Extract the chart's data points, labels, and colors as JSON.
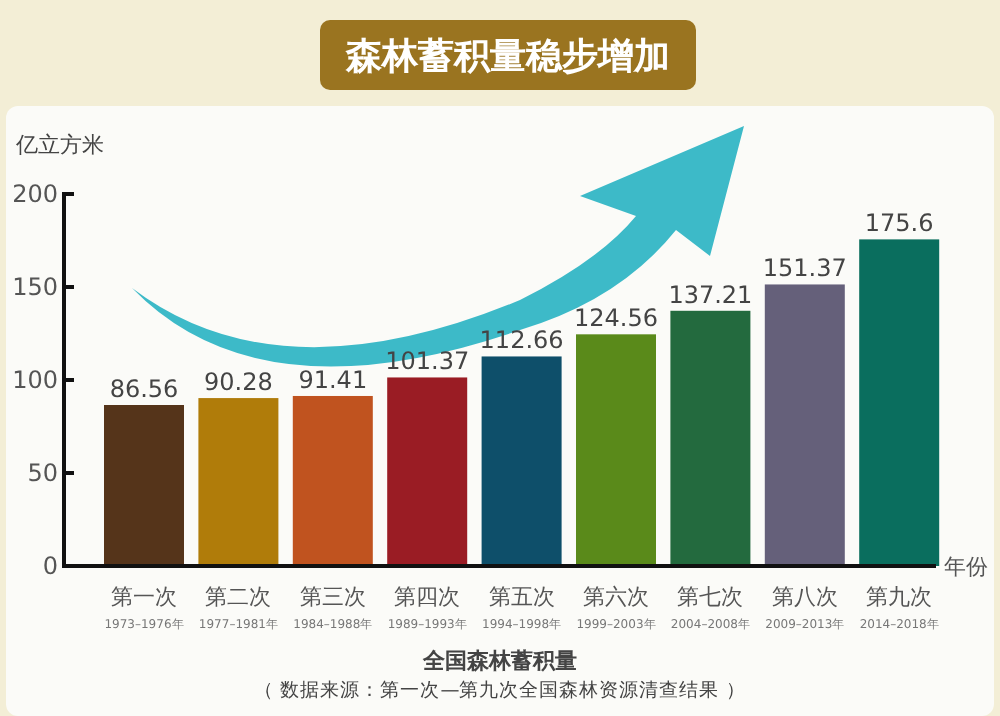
{
  "chart_data": {
    "type": "bar",
    "title": "森林蓄积量稳步增加",
    "xlabel": "年份",
    "ylabel": "亿立方米",
    "categories": [
      "第一次\n1973–1976年",
      "第二次\n1977–1981年",
      "第三次\n1984–1988年",
      "第四次\n1989–1993年",
      "第五次\n1994–1998年",
      "第六次\n1999–2003年",
      "第七次\n2004–2008年",
      "第八次\n2009–2013年",
      "第九次\n2014–2018年"
    ],
    "values": [
      86.56,
      90.28,
      91.41,
      101.37,
      112.66,
      124.56,
      137.21,
      151.37,
      175.6
    ],
    "colors": [
      "#55341a",
      "#b07c0a",
      "#c0531f",
      "#9a1c24",
      "#0e4f6a",
      "#5a8a1a",
      "#236a3e",
      "#65607a",
      "#0a6e5e"
    ],
    "ylim": [
      0,
      200
    ],
    "yticks": [
      0,
      50,
      100,
      150,
      200
    ],
    "data_labels": true,
    "annotations": [
      "全国森林蓄积量",
      "（ 数据来源：第一次—第九次全国森林资源清查结果 ）"
    ]
  }
}
